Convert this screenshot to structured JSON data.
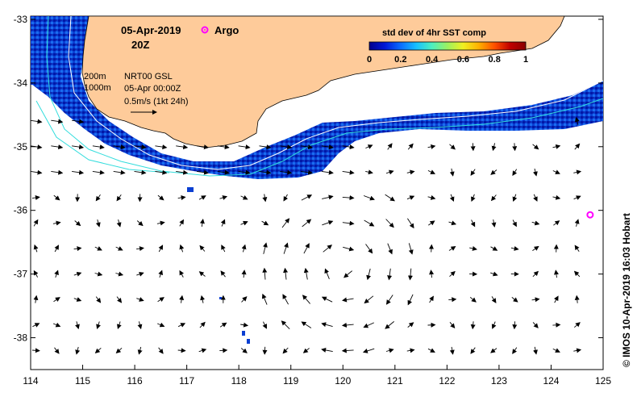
{
  "title": {
    "date": "05-Apr-2019",
    "time": "20Z",
    "argo_label": "Argo"
  },
  "legend": {
    "isobath_200": "200m",
    "isobath_1000": "1000m",
    "product": "NRT00 GSL",
    "valid_time": "05-Apr 00:00Z",
    "scale_arrow": "0.5m/s (1kt 24h)"
  },
  "colorbar": {
    "title": "std dev of 4hr SST comp",
    "ticks": [
      "0",
      "0.2",
      "0.4",
      "0.6",
      "0.8",
      "1"
    ],
    "colors": [
      "#00008c",
      "#0018d8",
      "#0a6cff",
      "#17c0ff",
      "#4cf0c0",
      "#9cf060",
      "#f0f020",
      "#ffb000",
      "#ff5000",
      "#c00000",
      "#8a0000"
    ]
  },
  "axes": {
    "lon_ticks": [
      "114",
      "115",
      "116",
      "117",
      "118",
      "119",
      "120",
      "121",
      "122",
      "123",
      "124",
      "125"
    ],
    "lat_ticks": [
      "-33",
      "-34",
      "-35",
      "-36",
      "-37",
      "-38"
    ],
    "lon_range": [
      114,
      125
    ],
    "lat_range": [
      -38.5,
      -32.95
    ]
  },
  "argo_float": {
    "lon": 124.75,
    "lat": -36.07,
    "color": "#ff00ff"
  },
  "credit": "© IMOS 10-Apr-2019 16:03 Hobart",
  "colors": {
    "land": "#fecb9a",
    "isobath_200": "#ffffff",
    "isobath_1000": "#33dddd",
    "argo": "#ff00ff"
  }
}
